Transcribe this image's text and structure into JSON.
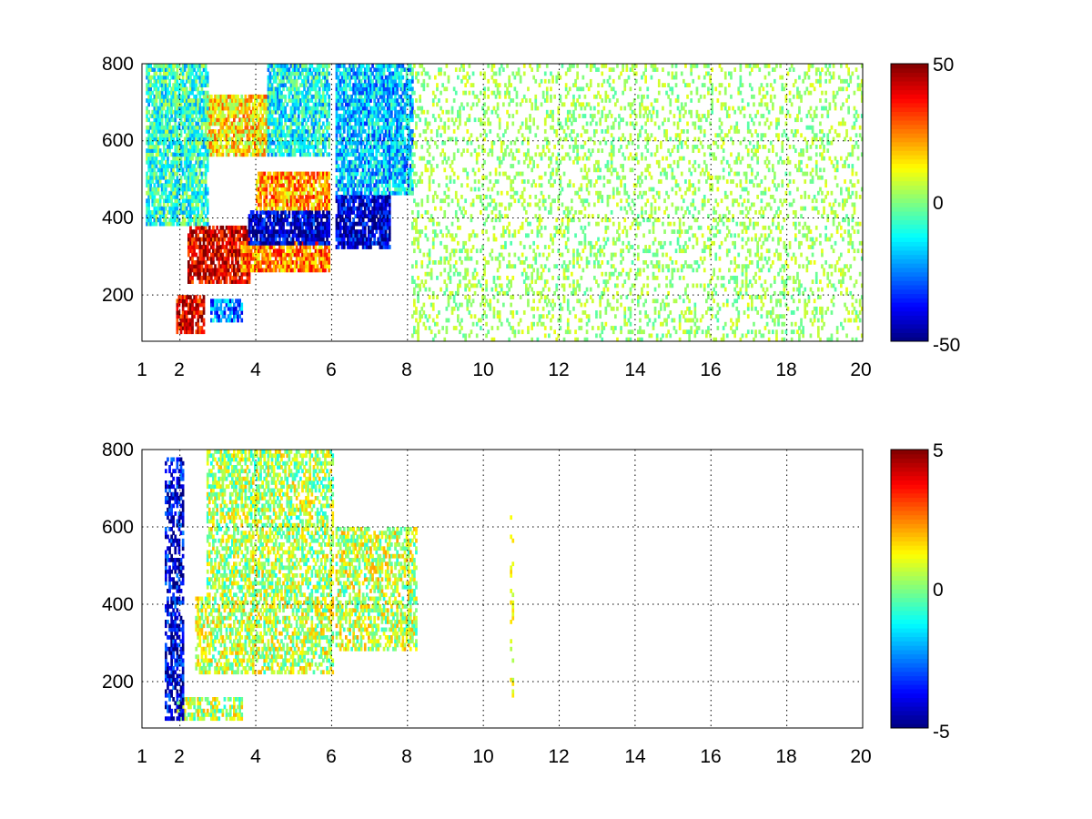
{
  "chart_data": [
    {
      "type": "heatmap",
      "title": "",
      "xlabel": "",
      "ylabel": "",
      "xlim": [
        1,
        20
      ],
      "ylim": [
        80,
        800
      ],
      "xscale": "linear",
      "x_ticks": [
        "1",
        "2",
        "4",
        "6",
        "8",
        "10",
        "12",
        "14",
        "16",
        "18",
        "20"
      ],
      "y_ticks": [
        "200",
        "400",
        "600",
        "800"
      ],
      "grid": true,
      "colormap": "jet",
      "clim": [
        -50,
        50
      ],
      "colorbar_ticks": [
        "-50",
        "0",
        "50"
      ],
      "colorbar_position": "right",
      "nan_color": "#ffffff",
      "regions": [
        {
          "x": [
            1.9,
            2.6
          ],
          "y": [
            100,
            200
          ],
          "level": 40
        },
        {
          "x": [
            2.2,
            3.8
          ],
          "y": [
            230,
            380
          ],
          "level": 42
        },
        {
          "x": [
            3.6,
            5.9
          ],
          "y": [
            260,
            340
          ],
          "level": 25
        },
        {
          "x": [
            3.8,
            5.9
          ],
          "y": [
            330,
            420
          ],
          "level": -42
        },
        {
          "x": [
            4.0,
            5.9
          ],
          "y": [
            420,
            520
          ],
          "level": 22
        },
        {
          "x": [
            2.8,
            3.6
          ],
          "y": [
            130,
            190
          ],
          "level": -25
        },
        {
          "x": [
            6.1,
            7.5
          ],
          "y": [
            320,
            460
          ],
          "level": -42
        },
        {
          "x": [
            6.1,
            8.1
          ],
          "y": [
            460,
            800
          ],
          "level": -18
        },
        {
          "x": [
            2.7,
            4.3
          ],
          "y": [
            560,
            720
          ],
          "level": 15
        },
        {
          "x": [
            4.3,
            5.9
          ],
          "y": [
            560,
            800
          ],
          "level": -12
        },
        {
          "x": [
            1.1,
            2.7
          ],
          "y": [
            380,
            800
          ],
          "level": -8
        },
        {
          "x": [
            8.1,
            20.0
          ],
          "y": [
            80,
            800
          ],
          "level": 3
        }
      ]
    },
    {
      "type": "heatmap",
      "title": "",
      "xlabel": "",
      "ylabel": "",
      "xlim": [
        1,
        20
      ],
      "ylim": [
        80,
        800
      ],
      "xscale": "linear",
      "x_ticks": [
        "1",
        "2",
        "4",
        "6",
        "8",
        "10",
        "12",
        "14",
        "16",
        "18",
        "20"
      ],
      "y_ticks": [
        "200",
        "400",
        "600",
        "800"
      ],
      "grid": true,
      "colormap": "jet",
      "clim": [
        -5,
        5
      ],
      "colorbar_ticks": [
        "-5",
        "0",
        "5"
      ],
      "colorbar_position": "right",
      "nan_color": "#ffffff",
      "regions": [
        {
          "x": [
            1.9,
            3.6
          ],
          "y": [
            100,
            160
          ],
          "level": 0.5
        },
        {
          "x": [
            2.4,
            6.0
          ],
          "y": [
            220,
            420
          ],
          "level": 0.6
        },
        {
          "x": [
            6.1,
            8.2
          ],
          "y": [
            280,
            600
          ],
          "level": 0.6
        },
        {
          "x": [
            2.7,
            6.0
          ],
          "y": [
            420,
            800
          ],
          "level": 0.4
        },
        {
          "x": [
            1.6,
            2.1
          ],
          "y": [
            100,
            780
          ],
          "level": -4
        },
        {
          "x": [
            10.7,
            10.8
          ],
          "y": [
            160,
            640
          ],
          "level": 1
        }
      ]
    }
  ]
}
